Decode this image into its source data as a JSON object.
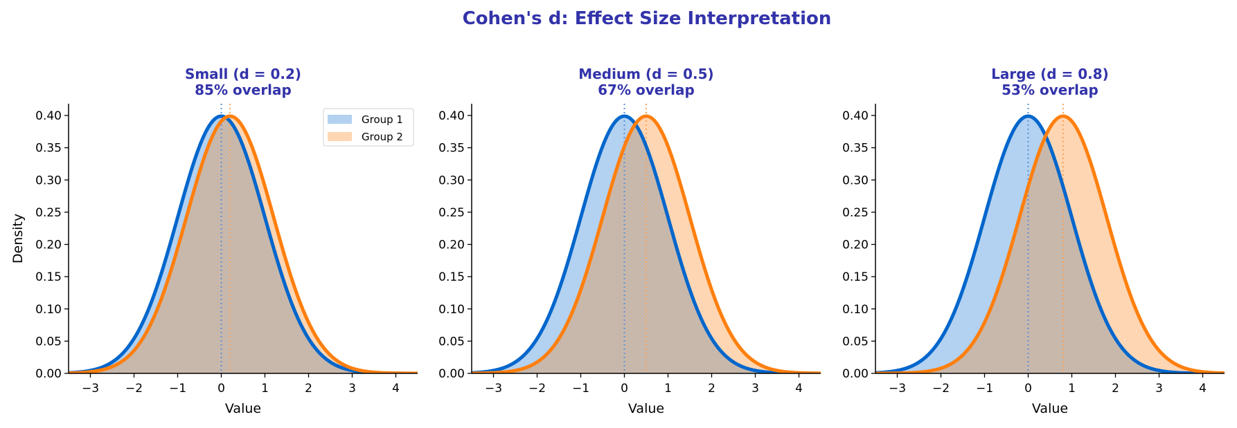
{
  "chart_data": {
    "type": "area",
    "title": "Cohen's d: Effect Size Interpretation",
    "colors": {
      "title": "#3333aa",
      "group1_line": "#0066cc",
      "group1_fill": "#b3d1f0",
      "group2_line": "#ff7f0e",
      "group2_fill": "#ffd6b3",
      "overlap_fill": "#c8b8ac",
      "group1_mean_line": "#5b8fd6",
      "group2_mean_line": "#ffa050"
    },
    "legend": {
      "placement": "upper-right (first panel only)",
      "entries": [
        "Group 1",
        "Group 2"
      ]
    },
    "panels": [
      {
        "title_line1": "Small (d = 0.2)",
        "title_line2": "85% overlap",
        "effect_size_d": 0.2,
        "overlap_percent": 85,
        "series": [
          {
            "name": "Group 1",
            "distribution": "normal",
            "mean": 0.0,
            "sd": 1.0
          },
          {
            "name": "Group 2",
            "distribution": "normal",
            "mean": 0.2,
            "sd": 1.0
          }
        ],
        "xlabel": "Value",
        "ylabel": "Density",
        "show_legend": true
      },
      {
        "title_line1": "Medium (d = 0.5)",
        "title_line2": "67% overlap",
        "effect_size_d": 0.5,
        "overlap_percent": 67,
        "series": [
          {
            "name": "Group 1",
            "distribution": "normal",
            "mean": 0.0,
            "sd": 1.0
          },
          {
            "name": "Group 2",
            "distribution": "normal",
            "mean": 0.5,
            "sd": 1.0
          }
        ],
        "xlabel": "Value",
        "ylabel": "",
        "show_legend": false
      },
      {
        "title_line1": "Large (d = 0.8)",
        "title_line2": "53% overlap",
        "effect_size_d": 0.8,
        "overlap_percent": 53,
        "series": [
          {
            "name": "Group 1",
            "distribution": "normal",
            "mean": 0.0,
            "sd": 1.0
          },
          {
            "name": "Group 2",
            "distribution": "normal",
            "mean": 0.8,
            "sd": 1.0
          }
        ],
        "xlabel": "Value",
        "ylabel": "",
        "show_legend": false
      }
    ],
    "xlim": [
      -3.5,
      4.5
    ],
    "ylim": [
      0,
      0.42
    ],
    "xticks": [
      -3,
      -2,
      -1,
      0,
      1,
      2,
      3,
      4
    ],
    "xtick_labels": [
      "−3",
      "−2",
      "−1",
      "0",
      "1",
      "2",
      "3",
      "4"
    ],
    "yticks": [
      0.0,
      0.05,
      0.1,
      0.15,
      0.2,
      0.25,
      0.3,
      0.35,
      0.4
    ],
    "ytick_labels": [
      "0.00",
      "0.05",
      "0.10",
      "0.15",
      "0.20",
      "0.25",
      "0.30",
      "0.35",
      "0.40"
    ],
    "grid": false,
    "spines": "left and bottom only"
  }
}
